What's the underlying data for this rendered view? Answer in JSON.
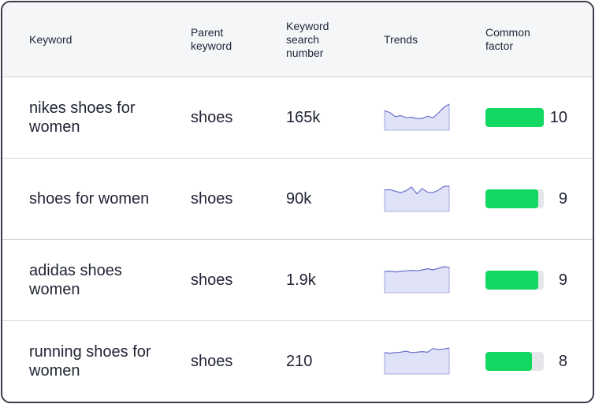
{
  "table": {
    "columns": [
      {
        "lines": [
          "Keyword"
        ]
      },
      {
        "lines": [
          "Parent",
          "keyword"
        ]
      },
      {
        "lines": [
          "Keyword",
          "search",
          "number"
        ]
      },
      {
        "lines": [
          "Trends"
        ]
      },
      {
        "lines": [
          "Common",
          "factor"
        ]
      }
    ],
    "rows": [
      {
        "keyword": "nikes shoes for women",
        "parent": "shoes",
        "search_number": "165k",
        "common_factor": "10",
        "factor_level": 1.0,
        "trend": [
          0.75,
          0.68,
          0.52,
          0.56,
          0.48,
          0.5,
          0.44,
          0.45,
          0.54,
          0.48,
          0.66,
          0.88,
          1.0
        ]
      },
      {
        "keyword": "shoes for women",
        "parent": "shoes",
        "search_number": "90k",
        "common_factor": "9",
        "factor_level": 0.9,
        "trend": [
          0.82,
          0.84,
          0.78,
          0.72,
          0.8,
          0.94,
          0.68,
          0.88,
          0.74,
          0.72,
          0.82,
          0.96,
          0.98
        ]
      },
      {
        "keyword": "adidas shoes women",
        "parent": "shoes",
        "search_number": "1.9k",
        "common_factor": "9",
        "factor_level": 0.9,
        "trend": [
          0.82,
          0.82,
          0.8,
          0.82,
          0.84,
          0.86,
          0.84,
          0.88,
          0.92,
          0.88,
          0.94,
          1.0,
          0.98
        ]
      },
      {
        "keyword": "running shoes for women",
        "parent": "shoes",
        "search_number": "210",
        "common_factor": "8",
        "factor_level": 0.8,
        "trend": [
          0.82,
          0.8,
          0.82,
          0.84,
          0.88,
          0.82,
          0.84,
          0.86,
          0.84,
          0.98,
          0.94,
          0.96,
          1.0
        ]
      }
    ]
  },
  "colors": {
    "trend_line": "#6a70c9",
    "trend_fill": "#e0e3f8",
    "factor_fill": "#12d861",
    "factor_track": "#e4e6ea"
  }
}
